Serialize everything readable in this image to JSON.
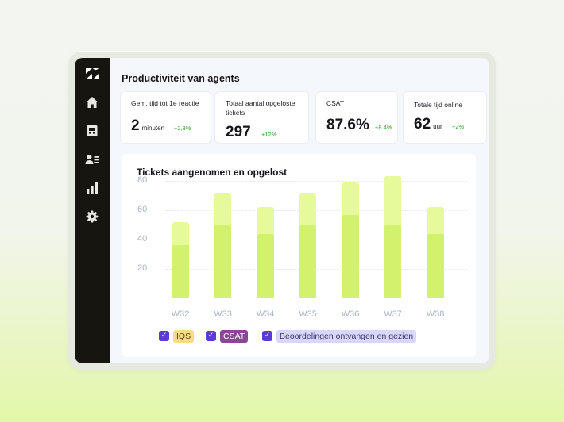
{
  "sidebar": {
    "items": [
      {
        "icon": "zendesk-logo-icon"
      },
      {
        "icon": "home-icon"
      },
      {
        "icon": "inbox-icon"
      },
      {
        "icon": "contacts-icon"
      },
      {
        "icon": "bar-chart-icon"
      },
      {
        "icon": "gear-icon"
      }
    ],
    "background": "#17150f"
  },
  "page_title": "Productiviteit van agents",
  "metrics": [
    {
      "label": "Gem. tijd tot 1e reactie",
      "value": "2",
      "unit": "minuten",
      "delta": "+2,3%"
    },
    {
      "label": "Totaal aantal opgeloste tickets",
      "value": "297",
      "unit": "",
      "delta": "+12%"
    },
    {
      "label": "CSAT",
      "value": "87.6%",
      "unit": "",
      "delta": "+8.4%"
    },
    {
      "label": "Totale tijd online",
      "value": "62",
      "unit": "uur",
      "delta": "+2%"
    }
  ],
  "chart_data": {
    "type": "bar",
    "title": "Tickets aangenomen en opgelost",
    "categories": [
      "W32",
      "W33",
      "W34",
      "W35",
      "W36",
      "W37",
      "W38"
    ],
    "yticks": [
      "80",
      "60",
      "40",
      "20"
    ],
    "ylim": [
      0,
      80
    ],
    "series": [
      {
        "values": [
          52,
          72,
          62,
          72,
          79,
          83,
          62
        ],
        "color": "#e6fa9c"
      },
      {
        "values": [
          36,
          50,
          44,
          50,
          57,
          50,
          44
        ],
        "color": "#d2f16c"
      }
    ],
    "grid": true,
    "stacked": false
  },
  "legend": [
    {
      "label": "IQS",
      "checked": true,
      "chip_color": "#f8dc86",
      "text_color": "#5b4210"
    },
    {
      "label": "CSAT",
      "checked": true,
      "chip_color": "#8a4893",
      "text_color": "#ffffff"
    },
    {
      "label": "Beoordelingen ontvangen en gezien",
      "checked": true,
      "chip_color": "#d9d6fb",
      "text_color": "#3c3570"
    }
  ],
  "colors": {
    "accent": "#5b3bd6",
    "positive": "#2aa52a"
  }
}
